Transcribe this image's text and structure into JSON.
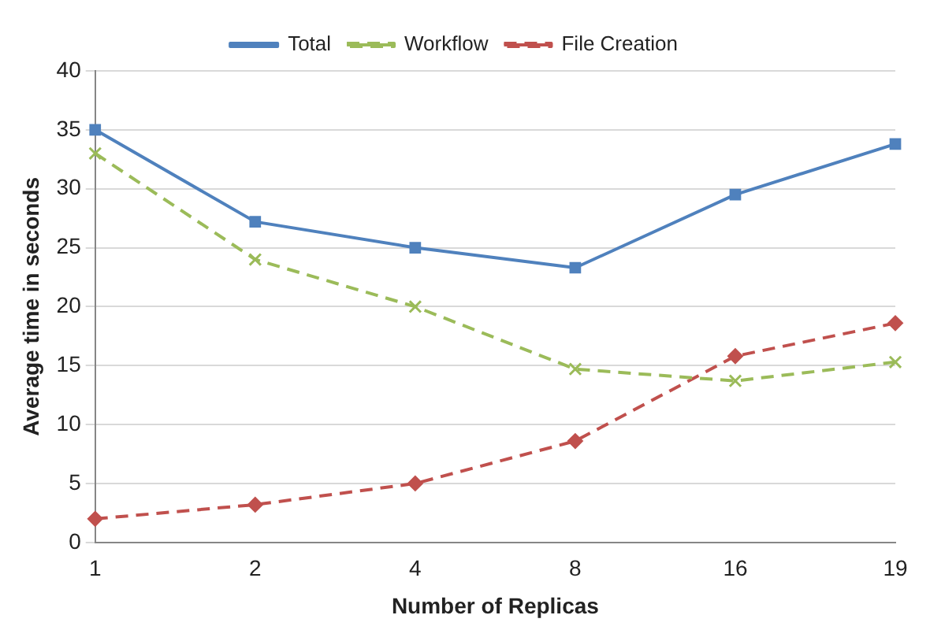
{
  "chart_data": {
    "type": "line",
    "xlabel": "Number of Replicas",
    "ylabel": "Average time in seconds",
    "categories": [
      "1",
      "2",
      "4",
      "8",
      "16",
      "19"
    ],
    "series": [
      {
        "name": "Total",
        "color": "#4f81bd",
        "marker": "square",
        "line_style": "solid",
        "values": [
          35,
          27.2,
          25,
          23.3,
          29.5,
          33.8
        ]
      },
      {
        "name": "Workflow",
        "color": "#9bbb59",
        "marker": "cross",
        "line_style": "dashed",
        "values": [
          33,
          24,
          20,
          14.7,
          13.7,
          15.3
        ]
      },
      {
        "name": "File Creation",
        "color": "#c0504d",
        "marker": "diamond",
        "line_style": "dashed",
        "values": [
          2,
          3.2,
          5,
          8.6,
          15.8,
          18.6
        ]
      }
    ],
    "ylim": [
      0,
      40
    ],
    "yticks": [
      0,
      5,
      10,
      15,
      20,
      25,
      30,
      35,
      40
    ],
    "grid": "y",
    "legend": "top"
  }
}
